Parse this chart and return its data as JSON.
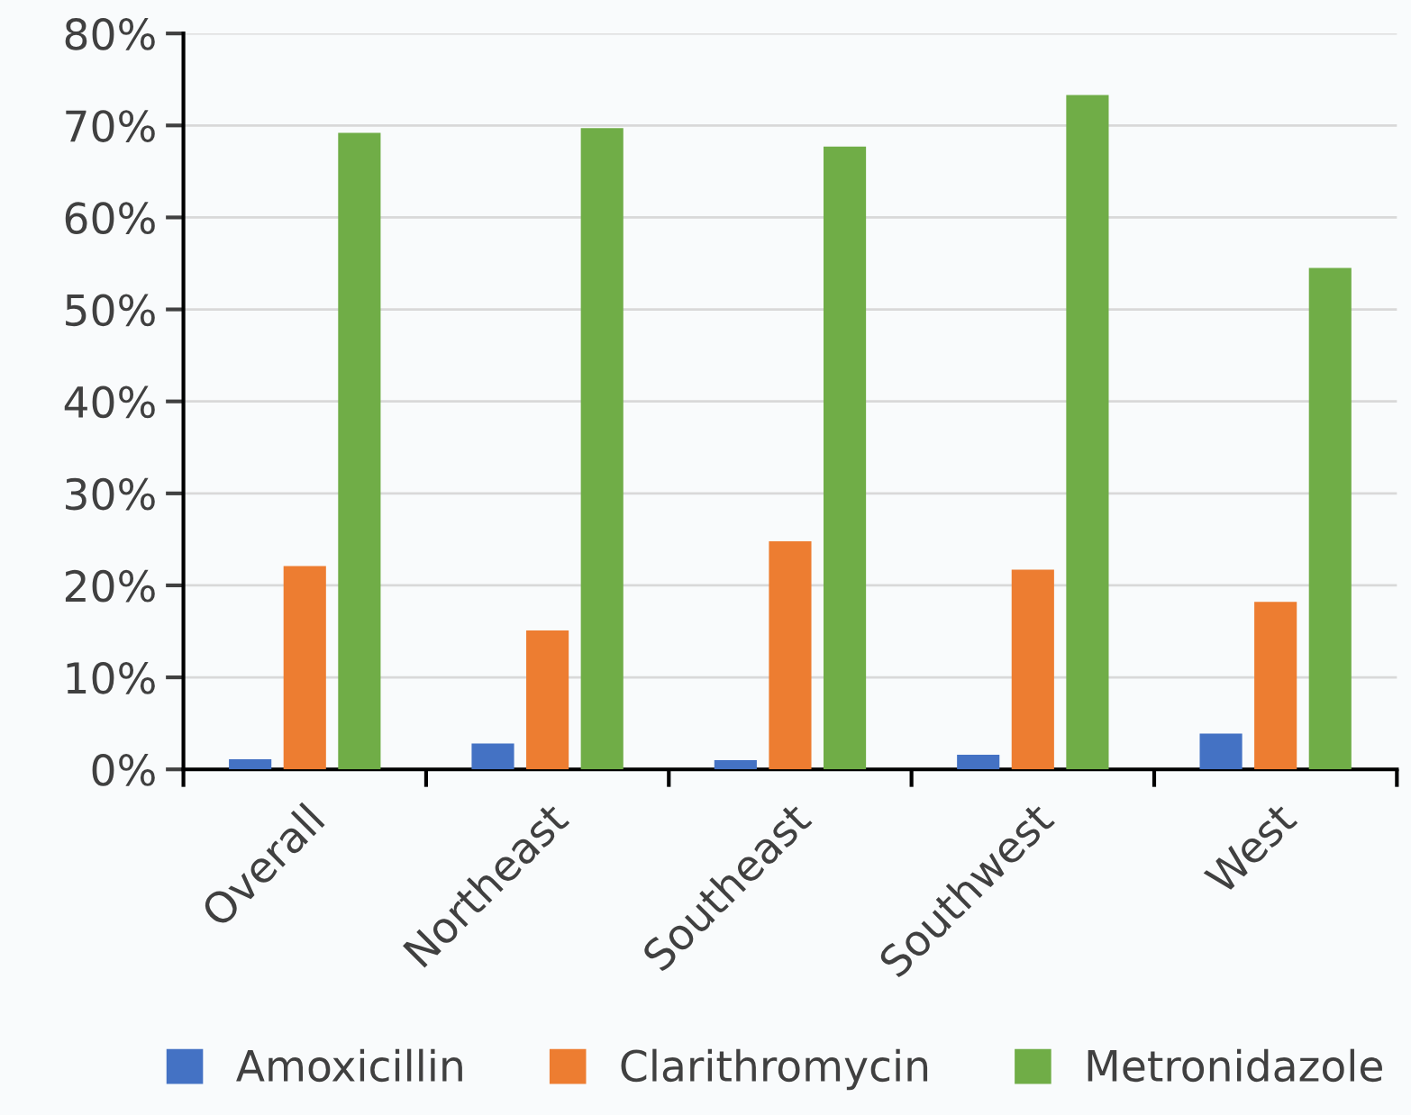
{
  "chart_data": {
    "type": "bar",
    "categories": [
      "Overall",
      "Northeast",
      "Southeast",
      "Southwest",
      "West"
    ],
    "series": [
      {
        "name": "Amoxicillin",
        "color": "#4472c4",
        "values": [
          1.1,
          2.8,
          1.0,
          1.6,
          3.9
        ]
      },
      {
        "name": "Clarithromycin",
        "color": "#ed7d31",
        "values": [
          22.1,
          15.1,
          24.8,
          21.7,
          18.2
        ]
      },
      {
        "name": "Metronidazole",
        "color": "#70ad47",
        "values": [
          69.2,
          69.7,
          67.7,
          73.3,
          54.5
        ]
      }
    ],
    "ylim": [
      0,
      80
    ],
    "yticks": [
      {
        "value": 0,
        "label": "0%"
      },
      {
        "value": 10,
        "label": "10%"
      },
      {
        "value": 20,
        "label": "20%"
      },
      {
        "value": 30,
        "label": "30%"
      },
      {
        "value": 40,
        "label": "40%"
      },
      {
        "value": 50,
        "label": "50%"
      },
      {
        "value": 60,
        "label": "60%"
      },
      {
        "value": 70,
        "label": "70%"
      },
      {
        "value": 80,
        "label": "80%"
      }
    ],
    "grid": "y",
    "legend": "bottom"
  }
}
